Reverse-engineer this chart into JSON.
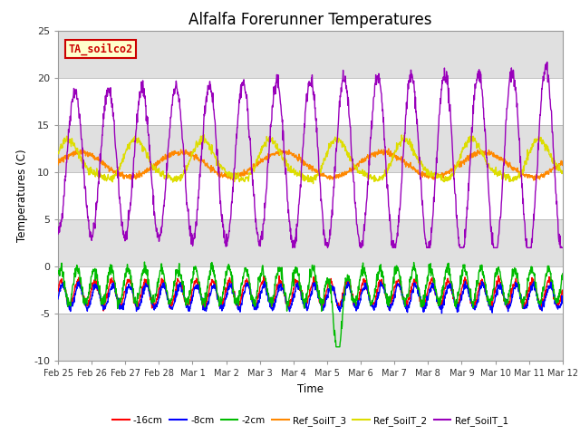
{
  "title": "Alfalfa Forerunner Temperatures",
  "xlabel": "Time",
  "ylabel": "Temperatures (C)",
  "ylim": [
    -10,
    25
  ],
  "yticks": [
    -10,
    -5,
    0,
    5,
    10,
    15,
    20,
    25
  ],
  "date_labels": [
    "Feb 25",
    "Feb 26",
    "Feb 27",
    "Feb 28",
    "Mar 1",
    "Mar 2",
    "Mar 3",
    "Mar 4",
    "Mar 5",
    "Mar 6",
    "Mar 7",
    "Mar 8",
    "Mar 9",
    "Mar 10",
    "Mar 11",
    "Mar 12"
  ],
  "n_points": 1500,
  "n_days": 15,
  "annotation_text": "TA_soilco2",
  "annotation_color": "#cc0000",
  "annotation_bg": "#ffffcc",
  "line_colors": {
    "m16cm": "#ff0000",
    "m8cm": "#0000ff",
    "m2cm": "#00bb00",
    "ref3": "#ff8800",
    "ref2": "#dddd00",
    "ref1": "#9900bb"
  },
  "legend_labels": [
    "-16cm",
    "-8cm",
    "-2cm",
    "Ref_SoilT_3",
    "Ref_SoilT_2",
    "Ref_SoilT_1"
  ],
  "legend_colors": [
    "#ff0000",
    "#0000ff",
    "#00bb00",
    "#ff8800",
    "#dddd00",
    "#9900bb"
  ],
  "background_color": "#ffffff",
  "grid_band_color": "#e0e0e0",
  "title_fontsize": 12
}
